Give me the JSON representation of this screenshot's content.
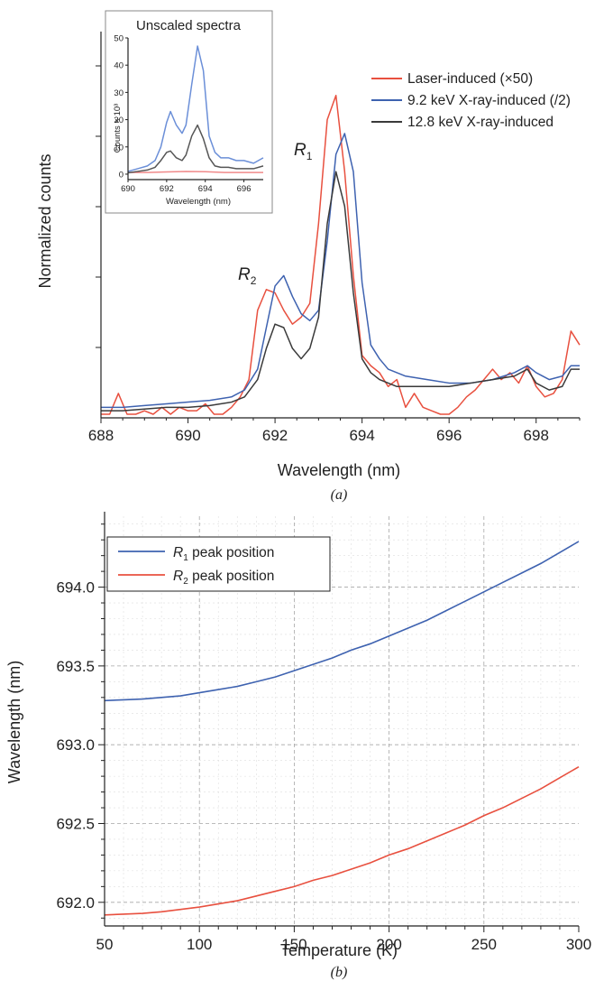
{
  "chart_data": [
    {
      "type": "line",
      "panel": "a",
      "caption": "(a)",
      "xlabel": "Wavelength (nm)",
      "ylabel": "Normalized counts",
      "xlim": [
        688,
        699
      ],
      "x_ticks": [
        "688",
        "690",
        "692",
        "694",
        "696",
        "698"
      ],
      "y_tick_labels": "none",
      "grid": false,
      "legend_position": "top-right",
      "annotations": [
        {
          "base": "R",
          "sub": "1",
          "near_x": 693.3
        },
        {
          "base": "R",
          "sub": "2",
          "near_x": 691.8
        }
      ],
      "series": [
        {
          "name": "Laser-induced (×50)",
          "color": "#e8503f",
          "x": [
            688.0,
            688.2,
            688.4,
            688.6,
            688.8,
            689.0,
            689.2,
            689.4,
            689.6,
            689.8,
            690.0,
            690.2,
            690.4,
            690.6,
            690.8,
            691.0,
            691.2,
            691.4,
            691.6,
            691.8,
            692.0,
            692.2,
            692.4,
            692.6,
            692.8,
            693.0,
            693.2,
            693.4,
            693.6,
            693.8,
            694.0,
            694.2,
            694.4,
            694.6,
            694.8,
            695.0,
            695.2,
            695.4,
            695.6,
            695.8,
            696.0,
            696.2,
            696.4,
            696.6,
            696.8,
            697.0,
            697.2,
            697.4,
            697.6,
            697.8,
            698.0,
            698.2,
            698.4,
            698.6,
            698.8,
            699.0
          ],
          "y": [
            0.0,
            0.0,
            0.06,
            0.0,
            0.0,
            0.01,
            0.0,
            0.02,
            0.0,
            0.02,
            0.01,
            0.01,
            0.03,
            0.0,
            0.0,
            0.02,
            0.05,
            0.1,
            0.3,
            0.36,
            0.35,
            0.3,
            0.26,
            0.28,
            0.32,
            0.55,
            0.85,
            0.92,
            0.7,
            0.4,
            0.17,
            0.14,
            0.12,
            0.08,
            0.1,
            0.02,
            0.06,
            0.02,
            0.01,
            0.0,
            0.0,
            0.02,
            0.05,
            0.07,
            0.1,
            0.13,
            0.1,
            0.12,
            0.09,
            0.14,
            0.08,
            0.05,
            0.06,
            0.1,
            0.24,
            0.2
          ]
        },
        {
          "name": "9.2 keV X-ray-induced (/2)",
          "color": "#3e62b0",
          "x": [
            688.0,
            688.5,
            689.0,
            689.5,
            690.0,
            690.5,
            691.0,
            691.3,
            691.6,
            691.8,
            692.0,
            692.2,
            692.4,
            692.6,
            692.8,
            693.0,
            693.2,
            693.4,
            693.6,
            693.8,
            694.0,
            694.2,
            694.4,
            694.6,
            694.8,
            695.0,
            695.5,
            696.0,
            696.5,
            697.0,
            697.5,
            697.8,
            698.0,
            698.3,
            698.6,
            698.8,
            699.0
          ],
          "y": [
            0.02,
            0.02,
            0.025,
            0.03,
            0.035,
            0.04,
            0.05,
            0.07,
            0.13,
            0.25,
            0.37,
            0.4,
            0.34,
            0.29,
            0.27,
            0.3,
            0.5,
            0.75,
            0.81,
            0.7,
            0.38,
            0.2,
            0.16,
            0.13,
            0.12,
            0.11,
            0.1,
            0.09,
            0.09,
            0.1,
            0.12,
            0.14,
            0.12,
            0.1,
            0.11,
            0.14,
            0.14
          ]
        },
        {
          "name": "12.8 keV X-ray-induced",
          "color": "#3a3a3a",
          "x": [
            688.0,
            688.5,
            689.0,
            689.5,
            690.0,
            690.5,
            691.0,
            691.3,
            691.6,
            691.8,
            692.0,
            692.2,
            692.4,
            692.6,
            692.8,
            693.0,
            693.2,
            693.4,
            693.6,
            693.8,
            694.0,
            694.2,
            694.4,
            694.6,
            694.8,
            695.0,
            695.5,
            696.0,
            696.5,
            697.0,
            697.5,
            697.8,
            698.0,
            698.3,
            698.6,
            698.8,
            699.0
          ],
          "y": [
            0.01,
            0.01,
            0.015,
            0.02,
            0.02,
            0.025,
            0.035,
            0.05,
            0.1,
            0.19,
            0.26,
            0.25,
            0.19,
            0.16,
            0.19,
            0.28,
            0.55,
            0.7,
            0.6,
            0.35,
            0.16,
            0.12,
            0.1,
            0.09,
            0.08,
            0.08,
            0.08,
            0.08,
            0.09,
            0.1,
            0.11,
            0.13,
            0.09,
            0.07,
            0.08,
            0.13,
            0.13
          ]
        }
      ]
    },
    {
      "type": "line",
      "panel": "inset",
      "title": "Unscaled spectra",
      "xlabel": "Wavelength (nm)",
      "ylabel": "Counts × 10³",
      "xlim": [
        690,
        697
      ],
      "ylim": [
        -2,
        50
      ],
      "x_ticks": [
        "690",
        "692",
        "694",
        "696"
      ],
      "y_ticks": [
        "0",
        "10",
        "20",
        "30",
        "40",
        "50"
      ],
      "series": [
        {
          "color": "#f08a8a",
          "x": [
            690,
            691,
            692,
            693,
            694,
            695,
            696,
            697
          ],
          "y": [
            0.6,
            0.6,
            0.8,
            1.0,
            0.9,
            0.6,
            0.6,
            0.6
          ]
        },
        {
          "color": "#6b8fd8",
          "x": [
            690.0,
            690.5,
            691.0,
            691.4,
            691.7,
            692.0,
            692.2,
            692.5,
            692.8,
            693.0,
            693.3,
            693.6,
            693.9,
            694.2,
            694.5,
            694.8,
            695.2,
            695.6,
            696.0,
            696.5,
            697.0
          ],
          "y": [
            1,
            2,
            3,
            5,
            10,
            19,
            23,
            18,
            15,
            18,
            33,
            47,
            38,
            14,
            8,
            6,
            6,
            5,
            5,
            4,
            6
          ]
        },
        {
          "color": "#555555",
          "x": [
            690.0,
            690.5,
            691.0,
            691.4,
            691.7,
            692.0,
            692.2,
            692.5,
            692.8,
            693.0,
            693.3,
            693.6,
            693.9,
            694.2,
            694.5,
            694.8,
            695.2,
            695.6,
            696.0,
            696.5,
            697.0
          ],
          "y": [
            0.5,
            1,
            1.5,
            2.5,
            5,
            8,
            8.5,
            6,
            5,
            7,
            14,
            18,
            13,
            6,
            3,
            2.5,
            2.5,
            2,
            2,
            2,
            3
          ]
        }
      ]
    },
    {
      "type": "line",
      "panel": "b",
      "caption": "(b)",
      "xlabel": "Temperature (K)",
      "ylabel": "Wavelength (nm)",
      "xlim": [
        50,
        300
      ],
      "ylim": [
        691.85,
        694.45
      ],
      "x_ticks": [
        "50",
        "100",
        "150",
        "200",
        "250",
        "300"
      ],
      "y_ticks": [
        "692.0",
        "692.5",
        "693.0",
        "693.5",
        "694.0"
      ],
      "grid": true,
      "legend_position": "top-left",
      "series": [
        {
          "name": "R1 peak position",
          "legend_base": "R",
          "legend_sub": "1",
          "legend_rest": " peak position",
          "color": "#3e62b0",
          "x": [
            50,
            60,
            70,
            80,
            90,
            100,
            110,
            120,
            130,
            140,
            150,
            160,
            170,
            180,
            190,
            200,
            210,
            220,
            230,
            240,
            250,
            260,
            270,
            280,
            290,
            300
          ],
          "y": [
            693.28,
            693.285,
            693.29,
            693.3,
            693.31,
            693.33,
            693.35,
            693.37,
            693.4,
            693.43,
            693.47,
            693.51,
            693.55,
            693.6,
            693.64,
            693.69,
            693.74,
            693.79,
            693.85,
            693.91,
            693.97,
            694.03,
            694.09,
            694.15,
            694.22,
            694.29
          ]
        },
        {
          "name": "R2 peak position",
          "legend_base": "R",
          "legend_sub": "2",
          "legend_rest": " peak position",
          "color": "#e8503f",
          "x": [
            50,
            60,
            70,
            80,
            90,
            100,
            110,
            120,
            130,
            140,
            150,
            160,
            170,
            180,
            190,
            200,
            210,
            220,
            230,
            240,
            250,
            260,
            270,
            280,
            290,
            300
          ],
          "y": [
            691.92,
            691.925,
            691.93,
            691.94,
            691.955,
            691.97,
            691.99,
            692.01,
            692.04,
            692.07,
            692.1,
            692.14,
            692.17,
            692.21,
            692.25,
            692.3,
            692.34,
            692.39,
            692.44,
            692.49,
            692.55,
            692.6,
            692.66,
            692.72,
            692.79,
            692.86
          ]
        }
      ]
    }
  ]
}
